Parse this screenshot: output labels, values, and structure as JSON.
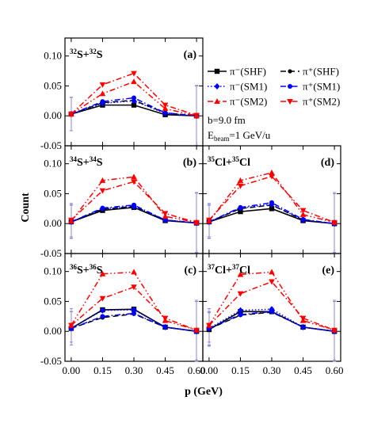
{
  "chart_data": {
    "type": "line",
    "xlabel": "p (GeV)",
    "ylabel": "Count",
    "x": [
      0.0,
      0.15,
      0.3,
      0.45,
      0.6
    ],
    "xticks": [
      "0.00",
      "0.15",
      "0.30",
      "0.45",
      "0.60"
    ],
    "yticks": [
      "-0.05",
      "0.00",
      "0.05",
      "0.10"
    ],
    "ylim": [
      -0.05,
      0.13
    ],
    "grid": false,
    "legend_position": "top-right of panel (a)",
    "legend": [
      {
        "label": "π⁻(SHF)",
        "color": "#000000",
        "marker": "square",
        "line": "solid"
      },
      {
        "label": "π⁺(SHF)",
        "color": "#000000",
        "marker": "dot",
        "line": "dash"
      },
      {
        "label": "π⁻(SM1)",
        "color": "#0000ff",
        "marker": "diamond",
        "line": "dot"
      },
      {
        "label": "π⁺(SM1)",
        "color": "#0000ff",
        "marker": "circle",
        "line": "dashdot"
      },
      {
        "label": "π⁻(SM2)",
        "color": "#ff0000",
        "marker": "triangle",
        "line": "dashdotdot"
      },
      {
        "label": "π⁺(SM2)",
        "color": "#ff0000",
        "marker": "triangle-down",
        "line": "dashdot"
      }
    ],
    "annotations": [
      "b=9.0 fm",
      "E_beam=1 GeV/u"
    ],
    "panels": [
      {
        "id": "a",
        "tag": "(a)",
        "system": [
          {
            "t": "32",
            "sup": true
          },
          {
            "t": "S+"
          },
          {
            "t": "32",
            "sup": true
          },
          {
            "t": "S"
          }
        ],
        "series": [
          {
            "values": [
              0.003,
              0.018,
              0.018,
              0.002,
              0.0
            ]
          },
          {
            "values": [
              0.003,
              0.022,
              0.026,
              0.005,
              0.0
            ]
          },
          {
            "values": [
              0.003,
              0.021,
              0.025,
              0.004,
              0.0
            ]
          },
          {
            "values": [
              0.003,
              0.024,
              0.03,
              0.005,
              0.0
            ]
          },
          {
            "values": [
              0.003,
              0.037,
              0.057,
              0.012,
              0.0
            ]
          },
          {
            "values": [
              0.003,
              0.052,
              0.071,
              0.018,
              0.001
            ]
          }
        ]
      },
      {
        "id": "b",
        "tag": "(b)",
        "system": [
          {
            "t": "34",
            "sup": true
          },
          {
            "t": "S+"
          },
          {
            "t": "34",
            "sup": true
          },
          {
            "t": "S"
          }
        ],
        "series": [
          {
            "values": [
              0.003,
              0.022,
              0.027,
              0.005,
              0.001
            ]
          },
          {
            "values": [
              0.003,
              0.024,
              0.029,
              0.006,
              0.001
            ]
          },
          {
            "values": [
              0.003,
              0.025,
              0.028,
              0.006,
              0.001
            ]
          },
          {
            "values": [
              0.003,
              0.026,
              0.031,
              0.006,
              0.001
            ]
          },
          {
            "values": [
              0.004,
              0.072,
              0.078,
              0.012,
              0.002
            ]
          },
          {
            "values": [
              0.006,
              0.055,
              0.07,
              0.017,
              0.002
            ]
          }
        ]
      },
      {
        "id": "c",
        "tag": "(c)",
        "system": [
          {
            "t": "36",
            "sup": true
          },
          {
            "t": "S+"
          },
          {
            "t": "36",
            "sup": true
          },
          {
            "t": "S"
          }
        ],
        "series": [
          {
            "values": [
              0.005,
              0.036,
              0.037,
              0.007,
              0.0
            ]
          },
          {
            "values": [
              0.005,
              0.023,
              0.029,
              0.007,
              0.0
            ]
          },
          {
            "values": [
              0.005,
              0.035,
              0.036,
              0.007,
              0.0
            ]
          },
          {
            "values": [
              0.005,
              0.025,
              0.03,
              0.007,
              0.0
            ]
          },
          {
            "values": [
              0.01,
              0.096,
              0.099,
              0.018,
              0.002
            ]
          },
          {
            "values": [
              0.01,
              0.055,
              0.074,
              0.022,
              0.002
            ]
          }
        ]
      },
      {
        "id": "d",
        "tag": "(d)",
        "system": [
          {
            "t": "35",
            "sup": true
          },
          {
            "t": "Cl+"
          },
          {
            "t": "35",
            "sup": true
          },
          {
            "t": "Cl"
          }
        ],
        "series": [
          {
            "values": [
              0.003,
              0.02,
              0.025,
              0.005,
              0.0
            ]
          },
          {
            "values": [
              0.003,
              0.025,
              0.031,
              0.006,
              0.0
            ]
          },
          {
            "values": [
              0.003,
              0.026,
              0.032,
              0.006,
              0.0
            ]
          },
          {
            "values": [
              0.003,
              0.027,
              0.035,
              0.007,
              0.0
            ]
          },
          {
            "values": [
              0.004,
              0.072,
              0.085,
              0.015,
              0.002
            ]
          },
          {
            "values": [
              0.006,
              0.063,
              0.079,
              0.022,
              0.002
            ]
          }
        ]
      },
      {
        "id": "e",
        "tag": "(e)",
        "system": [
          {
            "t": "37",
            "sup": true
          },
          {
            "t": "Cl+"
          },
          {
            "t": "37",
            "sup": true
          },
          {
            "t": "Cl"
          }
        ],
        "series": [
          {
            "values": [
              0.003,
              0.033,
              0.033,
              0.007,
              0.0
            ]
          },
          {
            "values": [
              0.004,
              0.027,
              0.032,
              0.007,
              0.0
            ]
          },
          {
            "values": [
              0.005,
              0.035,
              0.037,
              0.007,
              0.0
            ]
          },
          {
            "values": [
              0.005,
              0.028,
              0.033,
              0.007,
              0.0
            ]
          },
          {
            "values": [
              0.01,
              0.095,
              0.099,
              0.018,
              0.002
            ]
          },
          {
            "values": [
              0.01,
              0.063,
              0.083,
              0.022,
              0.002
            ]
          }
        ]
      }
    ],
    "error_bars_on_points": [
      0,
      4
    ],
    "error_bar_halfwidth": [
      0.028,
      0.05
    ]
  }
}
